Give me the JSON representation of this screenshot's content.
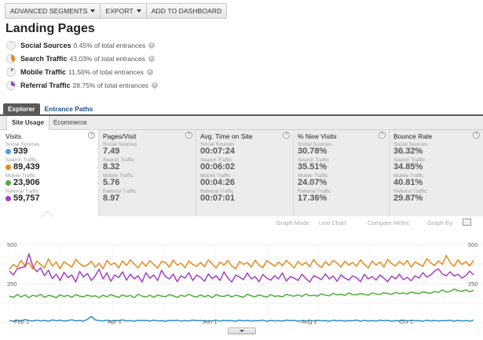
{
  "toolbar": {
    "advanced_segments": "ADVANCED SEGMENTS",
    "export": "EXPORT",
    "add_to_dashboard": "ADD TO DASHBOARD"
  },
  "page": {
    "title": "Landing Pages"
  },
  "segments": [
    {
      "name": "Social Sources",
      "pct": "0.45% of total entrances",
      "color": "#4aa3d8",
      "share": 0.0045
    },
    {
      "name": "Search Traffic",
      "pct": "43.03% of total entrances",
      "color": "#e8891c",
      "share": 0.4303
    },
    {
      "name": "Mobile Traffic",
      "pct": "11.50% of total entrances",
      "color": "#4caf35",
      "share": 0.115
    },
    {
      "name": "Referral Traffic",
      "pct": "28.75% of total entrances",
      "color": "#a33fbf",
      "share": 0.2875
    }
  ],
  "tabs": {
    "explorer": "Explorer",
    "entrance_paths": "Entrance Paths"
  },
  "subtabs": {
    "site_usage": "Site Usage",
    "ecommerce": "Ecommerce"
  },
  "metrics": [
    {
      "title": "Visits",
      "rows": [
        {
          "segment": "Social Sources",
          "value": "939"
        },
        {
          "segment": "Search Traffic",
          "value": "89,439"
        },
        {
          "segment": "Mobile Traffic",
          "value": "23,906"
        },
        {
          "segment": "Referral Traffic",
          "value": "59,757"
        }
      ]
    },
    {
      "title": "Pages/Visit",
      "rows": [
        {
          "segment": "Social Sources",
          "value": "7.49"
        },
        {
          "segment": "Search Traffic",
          "value": "8.32"
        },
        {
          "segment": "Mobile Traffic",
          "value": "5.76"
        },
        {
          "segment": "Referral Traffic",
          "value": "8.97"
        }
      ]
    },
    {
      "title": "Avg. Time on Site",
      "rows": [
        {
          "segment": "Social Sources",
          "value": "00:07:24"
        },
        {
          "segment": "Search Traffic",
          "value": "00:06:02"
        },
        {
          "segment": "Mobile Traffic",
          "value": "00:04:26"
        },
        {
          "segment": "Referral Traffic",
          "value": "00:07:01"
        }
      ]
    },
    {
      "title": "% New Visits",
      "rows": [
        {
          "segment": "Social Sources",
          "value": "30.78%"
        },
        {
          "segment": "Search Traffic",
          "value": "35.51%"
        },
        {
          "segment": "Mobile Traffic",
          "value": "24.07%"
        },
        {
          "segment": "Referral Traffic",
          "value": "17.36%"
        }
      ]
    },
    {
      "title": "Bounce Rate",
      "rows": [
        {
          "segment": "Social Sources",
          "value": "36.32%"
        },
        {
          "segment": "Search Traffic",
          "value": "34.85%"
        },
        {
          "segment": "Mobile Traffic",
          "value": "40.81%"
        },
        {
          "segment": "Referral Traffic",
          "value": "29.87%"
        }
      ]
    }
  ],
  "graph_controls": {
    "graph_mode_label": "Graph Mode:",
    "graph_mode_value": "Line Chart",
    "compare_metric": "Compare Metric",
    "graph_by": "Graph By:"
  },
  "chart_data": {
    "type": "line",
    "y_ticks": [
      "500",
      "250"
    ],
    "y_right_ticks": [
      "500",
      "250"
    ],
    "x_labels": [
      "Feb 1",
      "Apr 1",
      "Jun 1",
      "Aug 1",
      "Oct 1"
    ],
    "ylim": [
      0,
      500
    ],
    "points_per_series": 120,
    "series": [
      {
        "name": "Search Traffic",
        "color": "#e8891c",
        "values": [
          340,
          372,
          355,
          398,
          362,
          385,
          342,
          395,
          372,
          350,
          408,
          362,
          388,
          345,
          390,
          372,
          355,
          405,
          378,
          360,
          368,
          392,
          355,
          380,
          345,
          398,
          370,
          382,
          350,
          395,
          365,
          402,
          375,
          350,
          388,
          360,
          396,
          372,
          348,
          392,
          385,
          355,
          400,
          368,
          380,
          352,
          394,
          372,
          360,
          385,
          358,
          402,
          375,
          350,
          388,
          368,
          398,
          362,
          345,
          392,
          372,
          385,
          355,
          400,
          368,
          352,
          396,
          380,
          360,
          388,
          364,
          398,
          374,
          350,
          392,
          368,
          385,
          358,
          404,
          372,
          352,
          390,
          366,
          398,
          380,
          355,
          392,
          368,
          385,
          360,
          402,
          372,
          350,
          394,
          368,
          388,
          356,
          405,
          378,
          362,
          392,
          370,
          398,
          355,
          388,
          374,
          360,
          410,
          382,
          365,
          395,
          372,
          430,
          385,
          360,
          402,
          372,
          390,
          362,
          398
        ]
      },
      {
        "name": "Referral Traffic",
        "color": "#a33fbf",
        "values": [
          330,
          305,
          345,
          352,
          358,
          440,
          360,
          325,
          350,
          300,
          335,
          282,
          310,
          270,
          322,
          288,
          305,
          260,
          328,
          292,
          315,
          270,
          300,
          342,
          280,
          318,
          265,
          305,
          288,
          325,
          272,
          310,
          280,
          300,
          260,
          320,
          285,
          305,
          270,
          335,
          295,
          280,
          310,
          262,
          300,
          285,
          320,
          270,
          305,
          290,
          265,
          312,
          282,
          300,
          270,
          325,
          285,
          260,
          305,
          292,
          275,
          318,
          280,
          295,
          262,
          308,
          285,
          272,
          300,
          280,
          318,
          266,
          295,
          285,
          270,
          310,
          282,
          260,
          300,
          290,
          275,
          312,
          280,
          298,
          265,
          305,
          285,
          272,
          300,
          288,
          262,
          310,
          280,
          295,
          272,
          305,
          285,
          262,
          298,
          280,
          310,
          275,
          290,
          268,
          300,
          285,
          320,
          292,
          305,
          330,
          345,
          310,
          300,
          325,
          298,
          310,
          285,
          300,
          330,
          305
        ]
      },
      {
        "name": "Mobile Traffic",
        "color": "#4caf35",
        "values": [
          170,
          162,
          180,
          165,
          178,
          160,
          176,
          168,
          182,
          162,
          175,
          170,
          160,
          178,
          168,
          175,
          162,
          180,
          170,
          165,
          178,
          168,
          172,
          160,
          176,
          166,
          180,
          170,
          162,
          178,
          168,
          174,
          160,
          182,
          170,
          165,
          176,
          162,
          178,
          170,
          166,
          180,
          172,
          162,
          176,
          168,
          182,
          170,
          164,
          178,
          166,
          175,
          160,
          180,
          170,
          168,
          178,
          164,
          176,
          170,
          162,
          182,
          172,
          166,
          178,
          170,
          164,
          180,
          168,
          172,
          165,
          182,
          174,
          170,
          178,
          168,
          184,
          172,
          176,
          170,
          185,
          176,
          172,
          188,
          178,
          182,
          175,
          190,
          180,
          178,
          186,
          182,
          176,
          190,
          184,
          180,
          192,
          186,
          182,
          194,
          186,
          190,
          184,
          196,
          190,
          186,
          198,
          192,
          188,
          200,
          194,
          210,
          196,
          200,
          215,
          205,
          200,
          210,
          198,
          206
        ]
      },
      {
        "name": "Social Sources",
        "color": "#2a8fc4",
        "values": [
          14,
          10,
          16,
          12,
          20,
          14,
          11,
          17,
          12,
          15,
          10,
          18,
          13,
          16,
          11,
          14,
          19,
          12,
          15,
          10,
          22,
          40,
          18,
          14,
          12,
          16,
          11,
          15,
          13,
          18,
          12,
          14,
          10,
          16,
          13,
          15,
          11,
          17,
          12,
          14,
          10,
          15,
          13,
          16,
          11,
          14,
          12,
          17,
          13,
          15,
          10,
          14,
          12,
          16,
          11,
          15,
          13,
          14,
          10,
          17,
          12,
          15,
          11,
          14,
          13,
          16,
          10,
          15,
          12,
          14,
          11,
          17,
          13,
          15,
          10,
          14,
          12,
          16,
          11,
          15,
          13,
          14,
          10,
          16,
          12,
          15,
          11,
          14,
          13,
          17,
          10,
          15,
          12,
          14,
          11,
          16,
          13,
          15,
          10,
          14,
          12,
          17,
          11,
          15,
          13,
          14,
          10,
          16,
          12,
          15,
          11,
          14,
          13,
          16,
          10,
          15,
          12,
          14,
          11,
          16
        ]
      }
    ]
  }
}
